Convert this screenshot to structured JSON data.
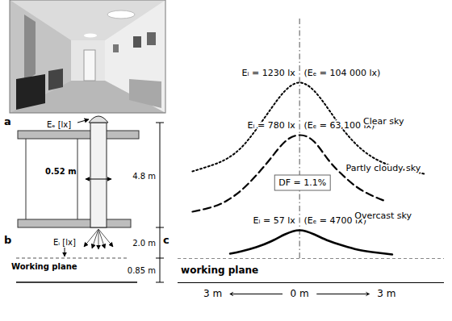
{
  "panels": {
    "a": {
      "letter": "a"
    },
    "b": {
      "letter": "b",
      "labels": {
        "exterior_illuminance": "Eₑ [lx]",
        "pipe_diameter": "0.52 m",
        "pipe_length": "4.8 m",
        "room_height": "2.0 m",
        "working_plane_height": "0.85 m",
        "interior_illuminance": "Eᵢ [lx]",
        "working_plane": "Working plane"
      }
    },
    "c": {
      "letter": "c"
    }
  },
  "chart_data": {
    "type": "line",
    "xlim": [
      -4.2,
      5
    ],
    "xticks": [
      {
        "value": -3,
        "label": "3 m"
      },
      {
        "value": 0,
        "label": "0 m"
      },
      {
        "value": 3,
        "label": "3 m"
      }
    ],
    "ylim": [
      -30,
      300
    ],
    "yticks": [],
    "tick_labels": "x",
    "working_plane": {
      "label": "working plane",
      "value": 0
    },
    "annotations": [
      "DF = 1.1%"
    ],
    "series": [
      {
        "name": "Clear sky",
        "color": "#000000",
        "line_style": "dotted",
        "x": [
          -3.7,
          -3,
          -2.5,
          -2,
          -1.5,
          -1,
          -0.5,
          0,
          0.5,
          1,
          1.5,
          2,
          2.5,
          3,
          3.5,
          4.3
        ],
        "values": [
          108,
          116,
          124,
          138,
          160,
          185,
          208,
          218,
          208,
          185,
          160,
          140,
          126,
          117,
          111,
          105
        ],
        "labels": {
          "interior": "Eᵢ = 1230 lx",
          "exterior": "(Eₑ = 104 000 lx)"
        }
      },
      {
        "name": "Partly cloudy sky",
        "color": "#000000",
        "line_style": "dashed",
        "x": [
          -3.7,
          -3,
          -2.5,
          -2,
          -1.5,
          -1,
          -0.5,
          0,
          0.5,
          1,
          1.5,
          2,
          2.5,
          2.9
        ],
        "values": [
          58,
          64,
          72,
          85,
          103,
          124,
          145,
          153,
          145,
          122,
          103,
          88,
          78,
          72
        ],
        "labels": {
          "interior": "Eᵢ = 780 lx",
          "exterior": "(Eₑ = 63 100 lx)"
        }
      },
      {
        "name": "Overcast sky",
        "color": "#000000",
        "line_style": "solid",
        "x": [
          -2.4,
          -2,
          -1.5,
          -1,
          -0.5,
          0,
          0.5,
          1,
          1.5,
          2,
          2.5,
          3.2
        ],
        "values": [
          6,
          9,
          14,
          21,
          30,
          35,
          30,
          22,
          16,
          11,
          8,
          5
        ],
        "labels": {
          "interior": "Eᵢ = 57 lx",
          "exterior": "(Eₑ = 4700 lx)"
        }
      }
    ]
  }
}
